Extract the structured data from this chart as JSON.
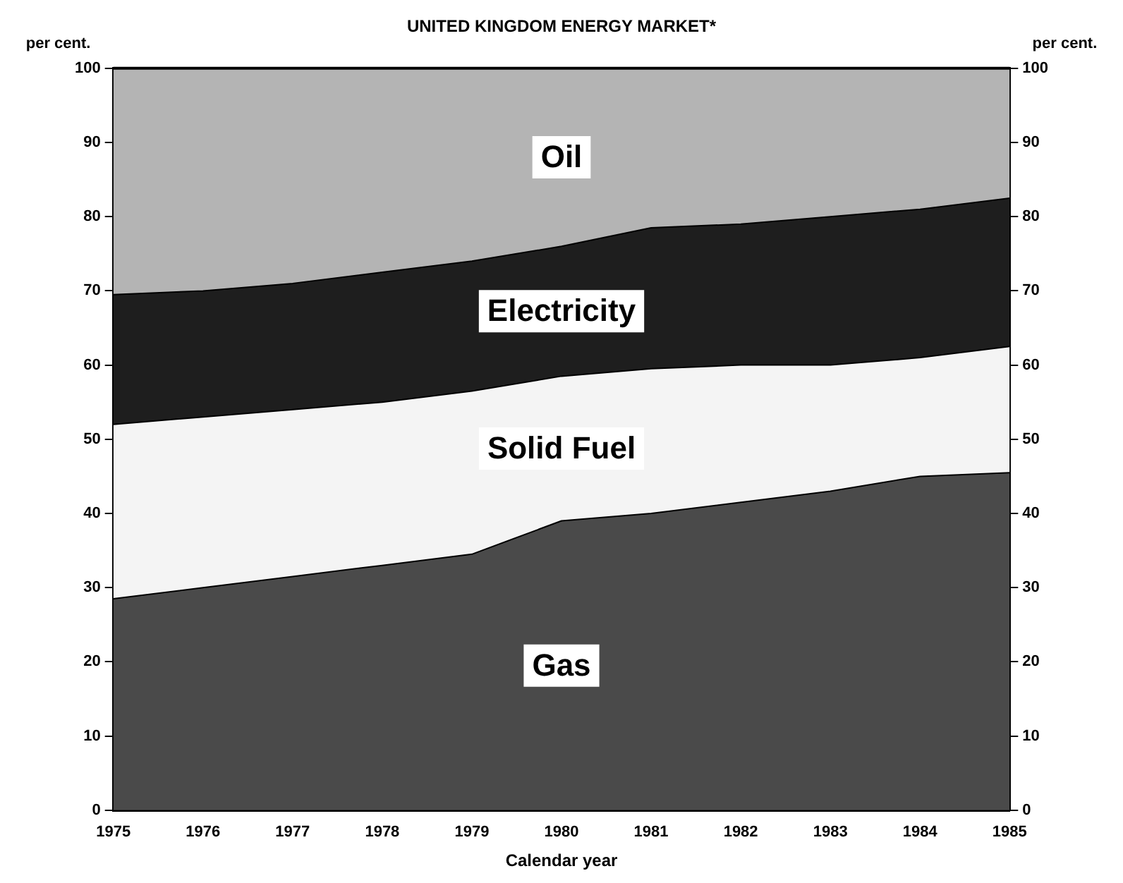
{
  "chart_data": {
    "type": "area",
    "stacked": true,
    "title": "UNITED KINGDOM ENERGY MARKET*",
    "ylabel": "per cent.",
    "y2label": "per cent.",
    "xlabel": "Calendar year",
    "x": [
      1975,
      1976,
      1977,
      1978,
      1979,
      1980,
      1981,
      1982,
      1983,
      1984,
      1985
    ],
    "series": [
      {
        "name": "Gas",
        "color": "#4a4a4a",
        "values": [
          28.5,
          30,
          31.5,
          33,
          34.5,
          39,
          40,
          41.5,
          43,
          45,
          45.5
        ]
      },
      {
        "name": "Solid Fuel",
        "color": "#f4f4f4",
        "values": [
          23.5,
          23,
          22.5,
          22,
          22,
          19.5,
          19.5,
          18.5,
          17,
          16,
          17
        ]
      },
      {
        "name": "Electricity",
        "color": "#1e1e1e",
        "values": [
          17.5,
          17,
          17,
          17.5,
          17.5,
          17.5,
          19,
          19,
          20,
          20,
          20
        ]
      },
      {
        "name": "Oil",
        "color": "#b4b4b4",
        "values": [
          30.5,
          30,
          29,
          27.5,
          26,
          24,
          21.5,
          21,
          20,
          19,
          17.5
        ]
      }
    ],
    "xlim": [
      1975,
      1985
    ],
    "xticks": [
      1975,
      1976,
      1977,
      1978,
      1979,
      1980,
      1981,
      1982,
      1983,
      1984,
      1985
    ],
    "ylim": [
      0,
      100
    ],
    "yticks": [
      0,
      10,
      20,
      30,
      40,
      50,
      60,
      70,
      80,
      90,
      100
    ],
    "y2lim": [
      0,
      100
    ],
    "y2ticks": [
      0,
      10,
      20,
      30,
      40,
      50,
      60,
      70,
      80,
      90,
      100
    ],
    "grid": false,
    "legend": false
  }
}
